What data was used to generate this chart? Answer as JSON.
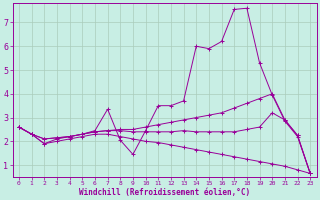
{
  "xlabel": "Windchill (Refroidissement éolien,°C)",
  "bg_color": "#c8eee4",
  "grid_color": "#aaccbb",
  "line_color": "#990099",
  "xlim": [
    -0.5,
    23.5
  ],
  "ylim": [
    0.5,
    7.8
  ],
  "yticks": [
    1,
    2,
    3,
    4,
    5,
    6,
    7
  ],
  "xticks": [
    0,
    1,
    2,
    3,
    4,
    5,
    6,
    7,
    8,
    9,
    10,
    11,
    12,
    13,
    14,
    15,
    16,
    17,
    18,
    19,
    20,
    21,
    22,
    23
  ],
  "series1_x": [
    0,
    1,
    2,
    3,
    4,
    5,
    6,
    7,
    8,
    9,
    10,
    11,
    12,
    13,
    14,
    15,
    16,
    17,
    18,
    19,
    20,
    21,
    22,
    23
  ],
  "series1_y": [
    2.6,
    2.3,
    1.9,
    2.1,
    2.2,
    2.3,
    2.45,
    3.35,
    2.05,
    1.45,
    2.45,
    3.5,
    3.5,
    3.7,
    6.0,
    5.9,
    6.2,
    7.55,
    7.6,
    5.3,
    3.95,
    2.85,
    2.2,
    0.65
  ],
  "series2_x": [
    0,
    1,
    2,
    3,
    4,
    5,
    6,
    7,
    8,
    9,
    10,
    11,
    12,
    13,
    14,
    15,
    16,
    17,
    18,
    19,
    20,
    21,
    22,
    23
  ],
  "series2_y": [
    2.6,
    2.3,
    2.1,
    2.15,
    2.2,
    2.3,
    2.4,
    2.45,
    2.5,
    2.5,
    2.6,
    2.7,
    2.8,
    2.9,
    3.0,
    3.1,
    3.2,
    3.4,
    3.6,
    3.8,
    4.0,
    2.9,
    2.25,
    0.65
  ],
  "series3_x": [
    0,
    1,
    2,
    3,
    4,
    5,
    6,
    7,
    8,
    9,
    10,
    11,
    12,
    13,
    14,
    15,
    16,
    17,
    18,
    19,
    20,
    21,
    22,
    23
  ],
  "series3_y": [
    2.6,
    2.3,
    2.1,
    2.15,
    2.2,
    2.3,
    2.4,
    2.45,
    2.45,
    2.4,
    2.4,
    2.4,
    2.4,
    2.45,
    2.4,
    2.4,
    2.4,
    2.4,
    2.5,
    2.6,
    3.2,
    2.9,
    2.25,
    0.65
  ],
  "series4_x": [
    0,
    1,
    2,
    3,
    4,
    5,
    6,
    7,
    8,
    9,
    10,
    11,
    12,
    13,
    14,
    15,
    16,
    17,
    18,
    19,
    20,
    21,
    22,
    23
  ],
  "series4_y": [
    2.6,
    2.3,
    1.9,
    2.0,
    2.1,
    2.2,
    2.3,
    2.3,
    2.2,
    2.1,
    2.0,
    1.95,
    1.85,
    1.75,
    1.65,
    1.55,
    1.45,
    1.35,
    1.25,
    1.15,
    1.05,
    0.95,
    0.8,
    0.65
  ]
}
